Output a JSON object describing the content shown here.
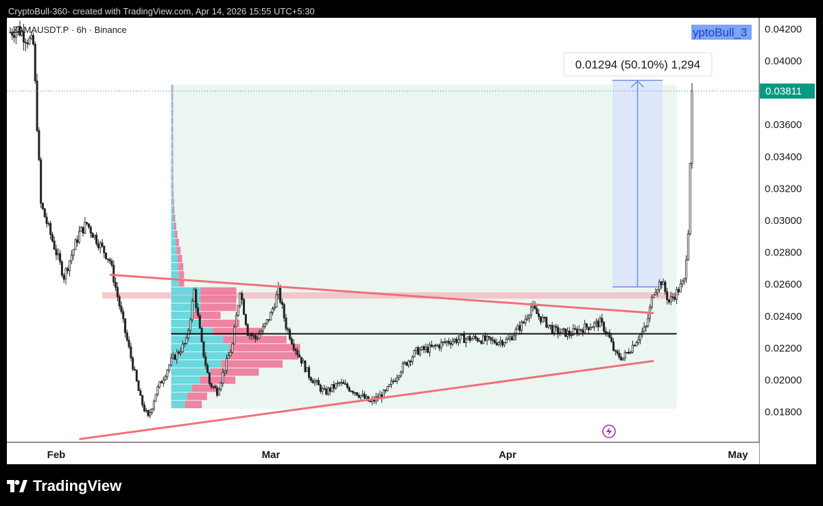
{
  "header": {
    "attribution": "CryptoBull-360- created with TradingView.com, Apr 14, 2026 15:55 UTC+5:30"
  },
  "symbol_label": "ZAMAUSDT.P · 6h · Binance",
  "author_tag": "yptoBull_3",
  "measure_label": "0.01294 (50.10%) 1,294",
  "last_price_label": "0.03811",
  "brand": {
    "name": "TradingView",
    "icon": "tradingview-logo-icon"
  },
  "colors": {
    "up": "#26a69a",
    "down": "#ef5350",
    "last_price": "#089981",
    "trendline": "#f07078",
    "vp_up": "#5dd4dc",
    "vp_down": "#ef6f94",
    "range_fill": "#e7f4ee",
    "measure_fill": "#dbe4fb",
    "measure_line": "#6d8fe0"
  },
  "chart_data": {
    "type": "candlestick",
    "symbol": "ZAMAUSDT.P",
    "interval": "6h",
    "exchange": "Binance",
    "y_ticks": [
      "0.04200",
      "0.04000",
      "0.03600",
      "0.03400",
      "0.03200",
      "0.03000",
      "0.02800",
      "0.02600",
      "0.02400",
      "0.02200",
      "0.02000",
      "0.01800"
    ],
    "x_ticks": [
      "Feb",
      "Mar",
      "Apr",
      "May"
    ],
    "ylim": [
      0.0161,
      0.0427
    ],
    "last_price": 0.03811,
    "anchors": [
      [
        "Jan 26",
        0.0418
      ],
      [
        "Jan 27",
        0.042
      ],
      [
        "Jan 28",
        0.0415
      ],
      [
        "Jan 29",
        0.041
      ],
      [
        "Jan 30",
        0.031
      ],
      [
        "Feb 1",
        0.028
      ],
      [
        "Feb 2",
        0.0265
      ],
      [
        "Feb 4",
        0.0292
      ],
      [
        "Feb 5",
        0.0298
      ],
      [
        "Feb 6",
        0.029
      ],
      [
        "Feb 8",
        0.0275
      ],
      [
        "Feb 10",
        0.023
      ],
      [
        "Feb 12",
        0.0188
      ],
      [
        "Feb 13",
        0.0176
      ],
      [
        "Feb 14",
        0.0192
      ],
      [
        "Feb 16",
        0.0212
      ],
      [
        "Feb 18",
        0.0224
      ],
      [
        "Feb 19",
        0.0256
      ],
      [
        "Feb 20",
        0.0222
      ],
      [
        "Feb 21",
        0.0198
      ],
      [
        "Feb 22",
        0.0193
      ],
      [
        "Feb 24",
        0.0222
      ],
      [
        "Feb 25",
        0.0257
      ],
      [
        "Feb 26",
        0.023
      ],
      [
        "Feb 27",
        0.0226
      ],
      [
        "Feb 28",
        0.0232
      ],
      [
        "Mar 1",
        0.0241
      ],
      [
        "Mar 2",
        0.0256
      ],
      [
        "Mar 3",
        0.0234
      ],
      [
        "Mar 4",
        0.0222
      ],
      [
        "Mar 6",
        0.0203
      ],
      [
        "Mar 8",
        0.0192
      ],
      [
        "Mar 10",
        0.0198
      ],
      [
        "Mar 12",
        0.0193
      ],
      [
        "Mar 14",
        0.0186
      ],
      [
        "Mar 16",
        0.0192
      ],
      [
        "Mar 18",
        0.0207
      ],
      [
        "Mar 20",
        0.0218
      ],
      [
        "Mar 22",
        0.022
      ],
      [
        "Mar 24",
        0.0224
      ],
      [
        "Mar 26",
        0.0226
      ],
      [
        "Mar 28",
        0.0226
      ],
      [
        "Mar 30",
        0.0224
      ],
      [
        "Apr 1",
        0.0225
      ],
      [
        "Apr 3",
        0.0236
      ],
      [
        "Apr 4",
        0.0246
      ],
      [
        "Apr 5",
        0.024
      ],
      [
        "Apr 7",
        0.0231
      ],
      [
        "Apr 9",
        0.0229
      ],
      [
        "Apr 11",
        0.0233
      ],
      [
        "Apr 13",
        0.0236
      ],
      [
        "Apr 14",
        0.0229
      ],
      [
        "Apr 15",
        0.0216
      ],
      [
        "Apr 16",
        0.0214
      ],
      [
        "Apr 17",
        0.022
      ],
      [
        "Apr 18",
        0.0227
      ],
      [
        "Apr 19",
        0.0233
      ],
      [
        "Apr 20",
        0.0256
      ],
      [
        "Apr 21",
        0.0262
      ],
      [
        "Apr 22",
        0.0249
      ],
      [
        "Apr 23",
        0.0255
      ],
      [
        "Apr 24",
        0.0262
      ],
      [
        "Apr 24.5",
        0.0295
      ],
      [
        "Apr 25",
        0.0381
      ]
    ],
    "annotations": {
      "upper_trendline": [
        [
          "Feb 8",
          0.0266
        ],
        [
          "Apr 20",
          0.0242
        ]
      ],
      "lower_trendline": [
        [
          "Feb 4",
          0.0163
        ],
        [
          "Apr 20",
          0.0212
        ]
      ],
      "horizontal_level": {
        "y": 0.0229,
        "from": "Feb 16",
        "to": "Apr 23"
      },
      "resistance_zone": {
        "y1": 0.0251,
        "y2": 0.0255,
        "from": "Feb 7",
        "to": "Apr 23"
      },
      "range_box": {
        "y1": 0.0182,
        "y2": 0.0385,
        "from": "Feb 16",
        "to": "Apr 23"
      },
      "measure": {
        "from": 0.02584,
        "to": 0.03878,
        "change": "0.01294",
        "pct": "50.10%",
        "ticks": "1,294"
      }
    }
  }
}
